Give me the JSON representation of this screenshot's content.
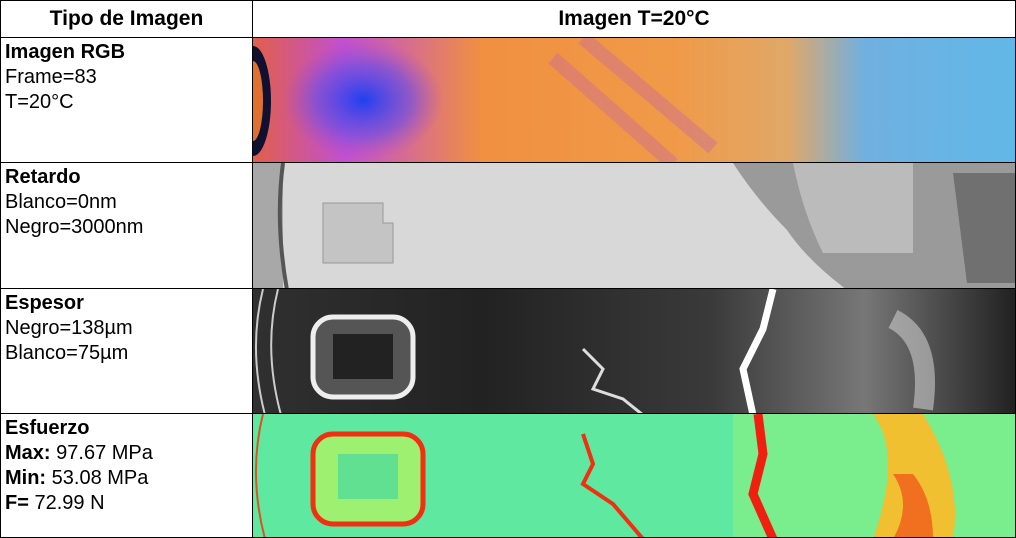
{
  "table": {
    "header": [
      "Tipo de Imagen",
      "Imagen T=20°C"
    ],
    "rows": [
      {
        "title": "Imagen RGB",
        "lines": [
          "Frame=83",
          "T=20°C"
        ]
      },
      {
        "title": "Retardo",
        "lines": [
          "Blanco=0nm",
          "Negro=3000nm"
        ]
      },
      {
        "title": "Espesor",
        "lines": [
          "Negro=138µm",
          "Blanco=75µm"
        ]
      },
      {
        "title": "Esfuerzo",
        "fields": [
          {
            "label": "Max:",
            "value": "97.67 MPa"
          },
          {
            "label": "Min:",
            "value": "53.08 MPa"
          },
          {
            "label": "F=",
            "value": "72.99 N"
          }
        ]
      }
    ]
  }
}
